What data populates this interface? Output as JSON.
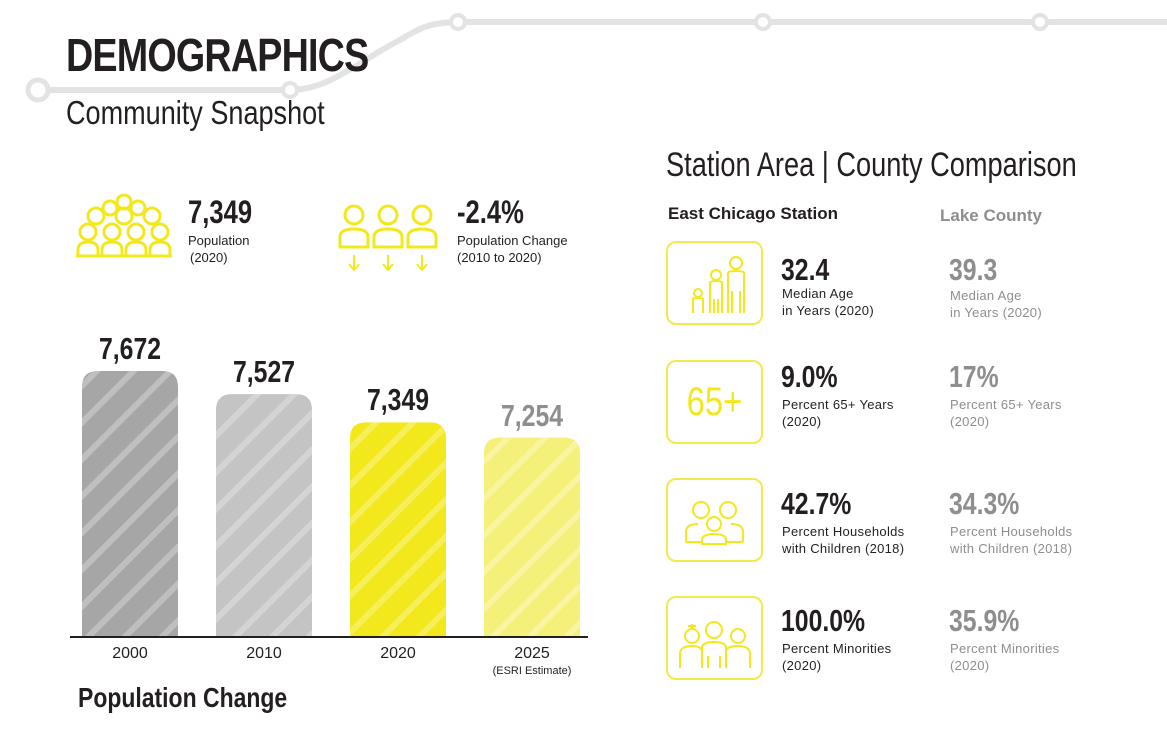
{
  "header": {
    "title": "DEMOGRAPHICS",
    "subtitle": "Community Snapshot"
  },
  "stats": [
    {
      "value": "7,349",
      "label1": "Population",
      "label2": "(2020)",
      "icon": "crowd-icon"
    },
    {
      "value": "-2.4%",
      "label1": "Population Change",
      "label2": "(2010 to 2020)",
      "icon": "population-decline-icon"
    }
  ],
  "comparison": {
    "title": "Station Area |  County Comparison",
    "station_head": "East Chicago Station",
    "county_head": "Lake County",
    "rows": [
      {
        "icon": "family-age-icon",
        "station_value": "32.4",
        "station_label": "Median Age\nin Years (2020)",
        "county_value": "39.3",
        "county_label": "Median Age\nin Years (2020)"
      },
      {
        "icon": "sixty-five-plus-icon",
        "icon_text": "65+",
        "station_value": "9.0%",
        "station_label": "Percent 65+ Years\n(2020)",
        "county_value": "17%",
        "county_label": "Percent 65+ Years\n(2020)"
      },
      {
        "icon": "household-children-icon",
        "station_value": "42.7%",
        "station_label": "Percent Households\nwith Children (2018)",
        "county_value": "34.3%",
        "county_label": "Percent Households\nwith Children (2018)"
      },
      {
        "icon": "minorities-group-icon",
        "station_value": "100.0%",
        "station_label": "Percent Minorities\n(2020)",
        "county_value": "35.9%",
        "county_label": "Percent Minorities\n(2020)"
      }
    ]
  },
  "colors": {
    "accent_yellow": "#f2e81c",
    "light_yellow": "#f5f07a",
    "dark_gray": "#a6a6a6",
    "light_gray": "#c4c4c4",
    "text": "#231f20",
    "muted": "#8e8e8e"
  },
  "chart_data": {
    "type": "bar",
    "title": "Population Change",
    "categories": [
      "2000",
      "2010",
      "2020",
      "2025"
    ],
    "category_notes": [
      "",
      "",
      "",
      "(ESRI Estimate)"
    ],
    "values": [
      7672,
      7527,
      7349,
      7254
    ],
    "value_labels": [
      "7,672",
      "7,527",
      "7,349",
      "7,254"
    ],
    "bar_colors": [
      "#a6a6a6",
      "#c4c4c4",
      "#f2e81c",
      "#f5f07a"
    ],
    "label_colors": [
      "#231f20",
      "#231f20",
      "#231f20",
      "#8e8e8e"
    ],
    "xlabel": "",
    "ylabel": ""
  }
}
